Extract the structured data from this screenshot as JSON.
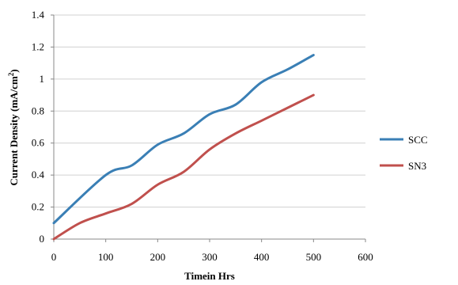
{
  "chart_data": {
    "type": "line",
    "title": "",
    "xlabel": "Timein Hrs",
    "ylabel_main": "Current Density (mA/cm",
    "ylabel_sup": "2",
    "ylabel_close": ")",
    "xlim": [
      0,
      600
    ],
    "ylim": [
      0,
      1.4
    ],
    "xticks": [
      "0",
      "100",
      "200",
      "300",
      "400",
      "500",
      "600"
    ],
    "yticks": [
      "0",
      "0.2",
      "0.4",
      "0.6",
      "0.8",
      "1",
      "1.2",
      "1.4"
    ],
    "grid": "horizontal",
    "legend_position": "right",
    "series": [
      {
        "name": "SCC",
        "color": "#3a7fb5",
        "points": [
          [
            0,
            0.1
          ],
          [
            100,
            0.4
          ],
          [
            150,
            0.46
          ],
          [
            200,
            0.59
          ],
          [
            250,
            0.66
          ],
          [
            300,
            0.78
          ],
          [
            350,
            0.84
          ],
          [
            400,
            0.98
          ],
          [
            450,
            1.06
          ],
          [
            500,
            1.15
          ]
        ]
      },
      {
        "name": "SN3",
        "color": "#c0504d",
        "points": [
          [
            0,
            0.0
          ],
          [
            50,
            0.1
          ],
          [
            100,
            0.16
          ],
          [
            150,
            0.22
          ],
          [
            200,
            0.34
          ],
          [
            250,
            0.42
          ],
          [
            300,
            0.56
          ],
          [
            350,
            0.66
          ],
          [
            400,
            0.74
          ],
          [
            450,
            0.82
          ],
          [
            500,
            0.9
          ]
        ]
      }
    ]
  }
}
